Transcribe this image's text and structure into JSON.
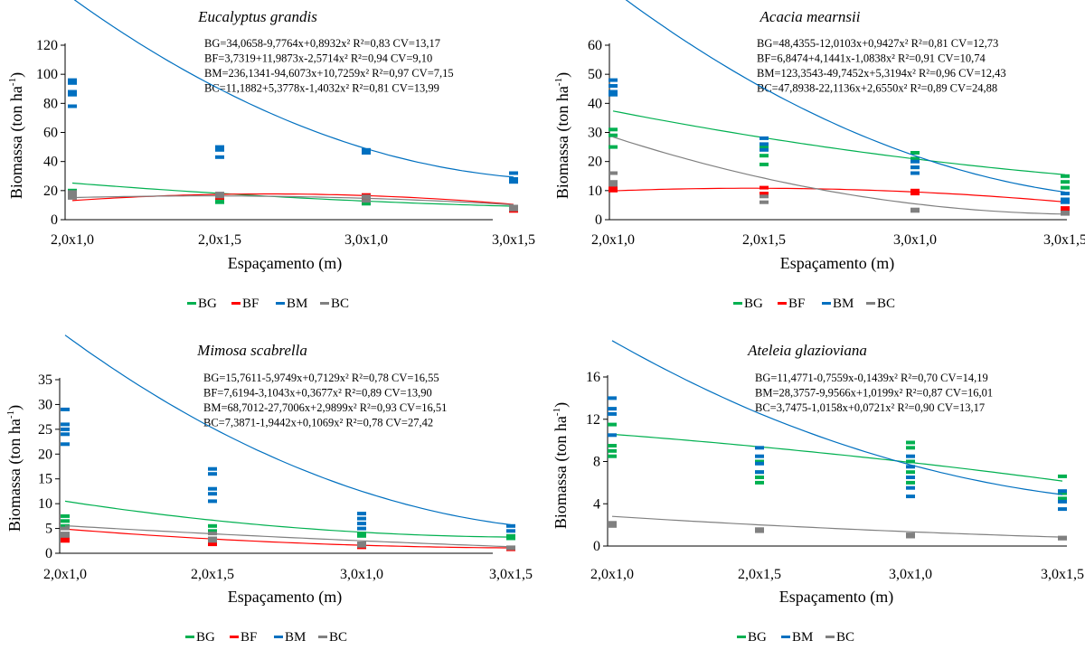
{
  "colors": {
    "BG": "#00b050",
    "BF": "#ff0000",
    "BM": "#0070c0",
    "BC": "#808080",
    "axis": "#000000"
  },
  "chart_data": [
    {
      "type": "scatter",
      "title": "Eucalyptus grandis",
      "xlabel": "Espaçamento (m)",
      "ylabel": "Biomassa (ton ha-1)",
      "ylabel_main": "Biomassa (ton ha",
      "ylabel_sup": "-1",
      "ylabel_close": ")",
      "categories": [
        "2,0x1,0",
        "2,0x1,5",
        "3,0x1,0",
        "3,0x1,5"
      ],
      "ylim": [
        0,
        120
      ],
      "yticks": [
        "0",
        "20",
        "40",
        "60",
        "80",
        "100",
        "120"
      ],
      "equations": [
        "BG=34,0658-9,7764x+0,8932x²  R²=0,83  CV=13,17",
        "BF=3,7319+11,9873x-2,5714x²  R²=0,94  CV=9,10",
        "BM=236,1341-94,6073x+10,7259x²  R²=0,97  CV=7,15",
        "BC=11,1882+5,3778x-1,4032x²  R²=0,81  CV=13,99"
      ],
      "legend": [
        "BG",
        "BF",
        "BM",
        "BC"
      ],
      "series": [
        {
          "name": "BG",
          "coef": [
            34.0658,
            -9.7764,
            0.8932
          ],
          "points": [
            [
              1,
              20
            ],
            [
              1,
              18
            ],
            [
              1,
              16
            ],
            [
              2,
              14
            ],
            [
              2,
              12
            ],
            [
              3,
              13
            ],
            [
              3,
              11
            ],
            [
              4,
              9
            ],
            [
              4,
              7
            ]
          ]
        },
        {
          "name": "BF",
          "coef": [
            3.7319,
            11.9873,
            -2.5714
          ],
          "points": [
            [
              1,
              18
            ],
            [
              1,
              16
            ],
            [
              2,
              17
            ],
            [
              2,
              15
            ],
            [
              3,
              17
            ],
            [
              3,
              15
            ],
            [
              4,
              7
            ],
            [
              4,
              6
            ]
          ]
        },
        {
          "name": "BM",
          "coef": [
            236.1341,
            -94.6073,
            10.7259
          ],
          "points": [
            [
              1,
              96
            ],
            [
              1,
              94
            ],
            [
              1,
              88
            ],
            [
              1,
              86
            ],
            [
              1,
              78
            ],
            [
              2,
              50
            ],
            [
              2,
              48
            ],
            [
              2,
              43
            ],
            [
              3,
              48
            ],
            [
              3,
              46
            ],
            [
              4,
              32
            ],
            [
              4,
              28
            ],
            [
              4,
              26
            ]
          ]
        },
        {
          "name": "BC",
          "coef": [
            11.1882,
            5.3778,
            -1.4032
          ],
          "points": [
            [
              1,
              19
            ],
            [
              1,
              17
            ],
            [
              1,
              15
            ],
            [
              2,
              18
            ],
            [
              2,
              16
            ],
            [
              3,
              16
            ],
            [
              3,
              13
            ],
            [
              4,
              9
            ],
            [
              4,
              7
            ]
          ]
        }
      ]
    },
    {
      "type": "scatter",
      "title": "Acacia mearnsii",
      "xlabel": "Espaçamento (m)",
      "ylabel": "Biomassa (ton ha-1)",
      "ylabel_main": "Biomassa (ton ha",
      "ylabel_sup": "-1",
      "ylabel_close": ")",
      "categories": [
        "2,0x1,0",
        "2,0x1,5",
        "3,0x1,0",
        "3,0x1,5"
      ],
      "ylim": [
        0,
        60
      ],
      "yticks": [
        "0",
        "10",
        "20",
        "30",
        "40",
        "50",
        "60"
      ],
      "equations": [
        "BG=48,4355-12,0103x+0,9427x²  R²=0,81  CV=12,73",
        "BF=6,8474+4,1441x-1,0838x²  R²=0,91  CV=10,74",
        "BM=123,3543-49,7452x+5,3194x²  R²=0,96  CV=12,43",
        "BC=47,8938-22,1136x+2,6550x²  R²=0,89  CV=24,88"
      ],
      "legend": [
        "BG",
        "BF",
        "BM",
        "BC"
      ],
      "series": [
        {
          "name": "BG",
          "coef": [
            48.4355,
            -12.0103,
            0.9427
          ],
          "points": [
            [
              1,
              31
            ],
            [
              1,
              29
            ],
            [
              1,
              25
            ],
            [
              2,
              25
            ],
            [
              2,
              22
            ],
            [
              2,
              19
            ],
            [
              3,
              23
            ],
            [
              3,
              21
            ],
            [
              3,
              18
            ],
            [
              4,
              15
            ],
            [
              4,
              13
            ],
            [
              4,
              11
            ]
          ]
        },
        {
          "name": "BF",
          "coef": [
            6.8474,
            4.1441,
            -1.0838
          ],
          "points": [
            [
              1,
              11
            ],
            [
              1,
              10
            ],
            [
              2,
              11
            ],
            [
              2,
              9
            ],
            [
              3,
              10
            ],
            [
              3,
              9
            ],
            [
              4,
              4
            ],
            [
              4,
              3
            ]
          ]
        },
        {
          "name": "BM",
          "coef": [
            123.3543,
            -49.7452,
            5.3194
          ],
          "points": [
            [
              1,
              48
            ],
            [
              1,
              46
            ],
            [
              1,
              44
            ],
            [
              1,
              43
            ],
            [
              2,
              28
            ],
            [
              2,
              26
            ],
            [
              2,
              24
            ],
            [
              3,
              20
            ],
            [
              3,
              18
            ],
            [
              3,
              16
            ],
            [
              4,
              9
            ],
            [
              4,
              7
            ],
            [
              4,
              6
            ]
          ]
        },
        {
          "name": "BC",
          "coef": [
            47.8938,
            -22.1136,
            2.655
          ],
          "points": [
            [
              1,
              16
            ],
            [
              1,
              13
            ],
            [
              1,
              12
            ],
            [
              2,
              8
            ],
            [
              2,
              6
            ],
            [
              3,
              3.5
            ],
            [
              3,
              3
            ],
            [
              4,
              2.5
            ],
            [
              4,
              2
            ]
          ]
        }
      ]
    },
    {
      "type": "scatter",
      "title": "Mimosa scabrella",
      "xlabel": "Espaçamento (m)",
      "ylabel": "Biomassa (ton ha-1)",
      "ylabel_main": "Biomassa (ton ha",
      "ylabel_sup": "-1",
      "ylabel_close": ")",
      "categories": [
        "2,0x1,0",
        "2,0x1,5",
        "3,0x1,0",
        "3,0x1,5"
      ],
      "ylim": [
        0,
        35
      ],
      "yticks": [
        "0",
        "5",
        "10",
        "15",
        "20",
        "25",
        "30",
        "35"
      ],
      "equations": [
        "BG=15,7611-5,9749x+0,7129x²  R²=0,78  CV=16,55",
        "BF=7,6194-3,1043x+0,3677x²  R²=0,89  CV=13,90",
        "BM=68,7012-27,7006x+2,9899x²  R²=0,93  CV=16,51",
        "BC=7,3871-1,9442x+0,1069x²  R²=0,78  CV=27,42"
      ],
      "legend": [
        "BG",
        "BF",
        "BM",
        "BC"
      ],
      "series": [
        {
          "name": "BG",
          "coef": [
            15.7611,
            -5.9749,
            0.7129
          ],
          "points": [
            [
              1,
              7.5
            ],
            [
              1,
              6.5
            ],
            [
              1,
              5.5
            ],
            [
              2,
              5.5
            ],
            [
              2,
              4.5
            ],
            [
              3,
              4
            ],
            [
              3,
              3.5
            ],
            [
              4,
              3.5
            ],
            [
              4,
              3
            ]
          ]
        },
        {
          "name": "BF",
          "coef": [
            7.6194,
            -3.1043,
            0.3677
          ],
          "points": [
            [
              1,
              3
            ],
            [
              1,
              2.5
            ],
            [
              2,
              2
            ],
            [
              2,
              1.8
            ],
            [
              3,
              1.5
            ],
            [
              3,
              1.2
            ],
            [
              4,
              1
            ],
            [
              4,
              0.8
            ]
          ]
        },
        {
          "name": "BM",
          "coef": [
            68.7012,
            -27.7006,
            2.9899
          ],
          "points": [
            [
              1,
              29
            ],
            [
              1,
              26
            ],
            [
              1,
              25
            ],
            [
              1,
              24
            ],
            [
              1,
              22
            ],
            [
              2,
              17
            ],
            [
              2,
              16
            ],
            [
              2,
              13
            ],
            [
              2,
              12
            ],
            [
              2,
              10.5
            ],
            [
              3,
              8
            ],
            [
              3,
              7
            ],
            [
              3,
              6
            ],
            [
              3,
              5
            ],
            [
              4,
              5.5
            ],
            [
              4,
              4.5
            ]
          ]
        },
        {
          "name": "BC",
          "coef": [
            7.3871,
            -1.9442,
            0.1069
          ],
          "points": [
            [
              1,
              5
            ],
            [
              1,
              4
            ],
            [
              1,
              3.5
            ],
            [
              2,
              4
            ],
            [
              2,
              3
            ],
            [
              2,
              2.5
            ],
            [
              3,
              2
            ],
            [
              3,
              1.5
            ],
            [
              4,
              1.2
            ],
            [
              4,
              1
            ]
          ]
        }
      ]
    },
    {
      "type": "scatter",
      "title": "Ateleia glazioviana",
      "xlabel": "Espaçamento (m)",
      "ylabel": "Biomassa (ton ha-1)",
      "ylabel_main": "Biomassa (ton ha",
      "ylabel_sup": "-1",
      "ylabel_close": ")",
      "categories": [
        "2,0x1,0",
        "2,0x1,5",
        "3,0x1,0",
        "3,0x1,5"
      ],
      "ylim": [
        0,
        16
      ],
      "yticks": [
        "0",
        "4",
        "8",
        "12",
        "16"
      ],
      "equations": [
        "BG=11,4771-0,7559x-0,1439x²  R²=0,70  CV=14,19",
        "BM=28,3757-9,9566x+1,0199x²  R²=0,87  CV=16,01",
        "BC=3,7475-1,0158x+0,0721x²  R²=0,90  CV=13,17"
      ],
      "legend": [
        "BG",
        "BM",
        "BC"
      ],
      "series": [
        {
          "name": "BG",
          "coef": [
            11.4771,
            -0.7559,
            -0.1439
          ],
          "points": [
            [
              1,
              11.5
            ],
            [
              1,
              9.5
            ],
            [
              1,
              9
            ],
            [
              1,
              8.5
            ],
            [
              2,
              8
            ],
            [
              2,
              7
            ],
            [
              2,
              6.5
            ],
            [
              2,
              6
            ],
            [
              3,
              9.8
            ],
            [
              3,
              9.3
            ],
            [
              3,
              8
            ],
            [
              3,
              7
            ],
            [
              3,
              6
            ],
            [
              4,
              6.6
            ],
            [
              4,
              5
            ],
            [
              4,
              4.5
            ]
          ]
        },
        {
          "name": "BM",
          "coef": [
            28.3757,
            -9.9566,
            1.0199
          ],
          "points": [
            [
              1,
              14
            ],
            [
              1,
              13
            ],
            [
              1,
              12.5
            ],
            [
              1,
              10.5
            ],
            [
              2,
              9.3
            ],
            [
              2,
              8.5
            ],
            [
              2,
              7.8
            ],
            [
              2,
              7
            ],
            [
              3,
              8.5
            ],
            [
              3,
              7.5
            ],
            [
              3,
              6.5
            ],
            [
              3,
              5.5
            ],
            [
              3,
              4.7
            ],
            [
              4,
              5.2
            ],
            [
              4,
              4.2
            ],
            [
              4,
              3.5
            ]
          ]
        },
        {
          "name": "BC",
          "coef": [
            3.7475,
            -1.0158,
            0.0721
          ],
          "points": [
            [
              1,
              2.2
            ],
            [
              1,
              1.9
            ],
            [
              2,
              1.6
            ],
            [
              2,
              1.4
            ],
            [
              3,
              1.1
            ],
            [
              3,
              0.9
            ],
            [
              4,
              0.8
            ],
            [
              4,
              0.7
            ]
          ]
        }
      ]
    }
  ]
}
